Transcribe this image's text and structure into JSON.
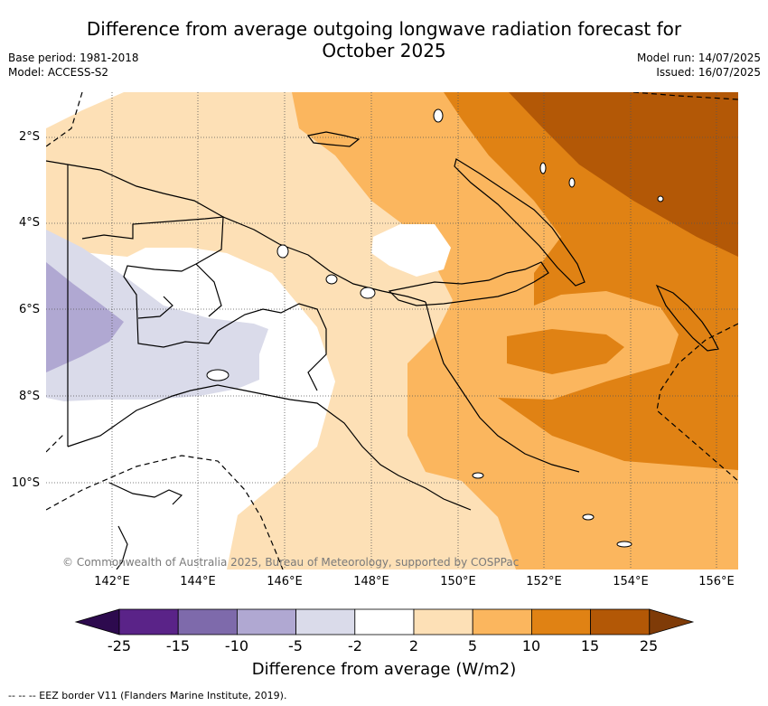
{
  "title_line1": "Difference from average outgoing longwave radiation forecast for",
  "title_line2": "October 2025",
  "base_period": "Base period: 1981-2018",
  "model": "Model: ACCESS-S2",
  "model_run": "Model run: 14/07/2025",
  "issued": "Issued: 16/07/2025",
  "copyright": "© Commonwealth of Australia 2025, Bureau of Meteorology, supported by COSPPac",
  "footnote": "--  --  -- EEZ border V11 (Flanders Marine Institute, 2019).",
  "lat_ticks": [
    "2°S",
    "4°S",
    "6°S",
    "8°S",
    "10°S"
  ],
  "lon_ticks": [
    "142°E",
    "144°E",
    "146°E",
    "148°E",
    "150°E",
    "152°E",
    "154°E",
    "156°E"
  ],
  "colorbar": {
    "label": "Difference from average (W/m2)",
    "ticks": [
      "-25",
      "-15",
      "-10",
      "-5",
      "-2",
      "2",
      "5",
      "10",
      "15",
      "25"
    ],
    "colors": [
      "#2d0a4e",
      "#5a2388",
      "#7e6aab",
      "#b0a8d2",
      "#dadbea",
      "#ffffff",
      "#fde0b6",
      "#fbb65e",
      "#e08214",
      "#b35806",
      "#7f3b08"
    ]
  }
}
